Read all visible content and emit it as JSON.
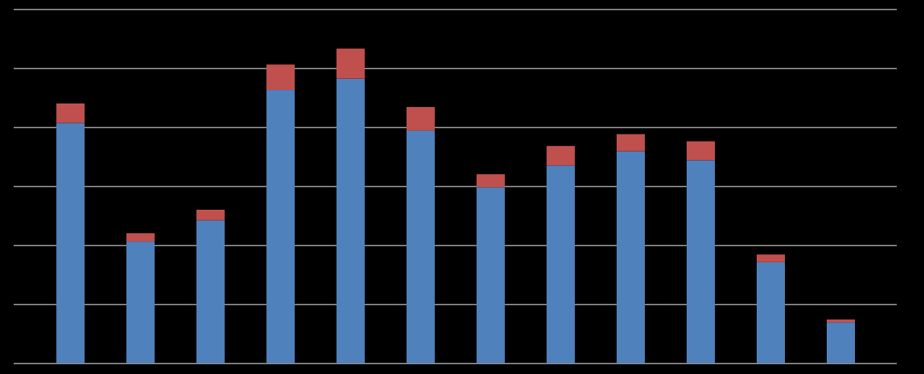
{
  "chart_data": {
    "type": "bar",
    "stacked": true,
    "grid": true,
    "tick_labels": false,
    "categories": [
      null,
      null,
      null,
      null,
      null,
      null,
      null,
      null,
      null,
      null,
      null,
      null
    ],
    "series": [
      {
        "color": "#4f81bd",
        "values": [
          40.7,
          20.6,
          24.2,
          46.3,
          48.2,
          39.4,
          29.8,
          33.5,
          35.9,
          34.4,
          17.1,
          6.9
        ]
      },
      {
        "color": "#c0504d",
        "values": [
          3.3,
          1.4,
          1.8,
          4.3,
          5.1,
          4.0,
          2.2,
          3.3,
          2.9,
          3.2,
          1.3,
          0.5
        ]
      }
    ],
    "ylim": [
      0,
      60
    ],
    "yticks": [
      0,
      10,
      20,
      30,
      40,
      50,
      60
    ]
  }
}
